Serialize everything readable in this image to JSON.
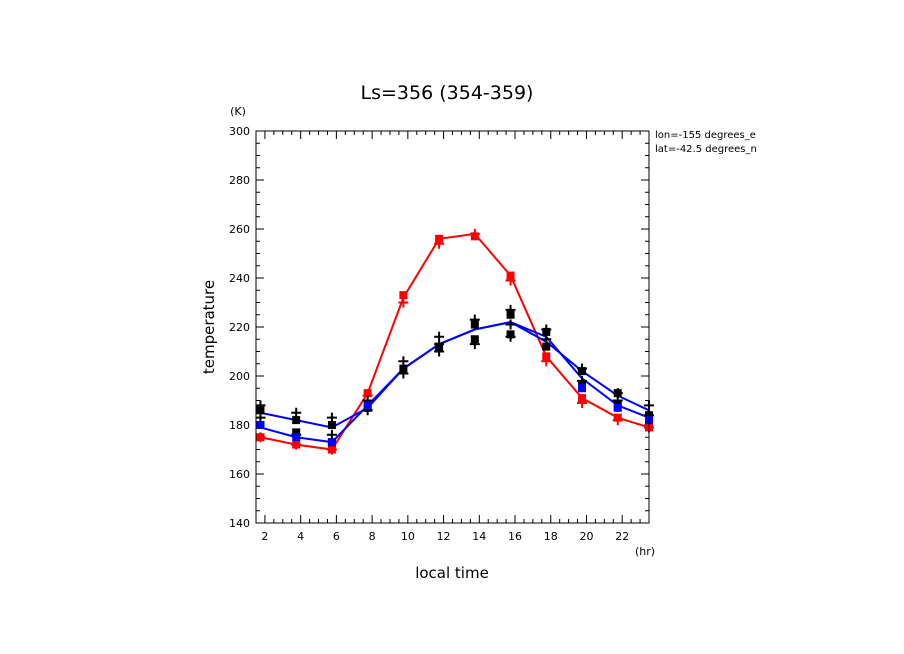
{
  "chart_data": {
    "type": "line",
    "title": "Ls=356 (354-359)",
    "xlabel": "local time",
    "ylabel": "temperature",
    "x_unit": "(hr)",
    "y_unit": "(K)",
    "xlim": [
      1.5,
      23.5
    ],
    "ylim": [
      140,
      300
    ],
    "x_ticks": [
      2,
      4,
      6,
      8,
      10,
      12,
      14,
      16,
      18,
      20,
      22
    ],
    "y_ticks": [
      140,
      160,
      180,
      200,
      220,
      240,
      260,
      280,
      300
    ],
    "annotations": [
      "lon=-155 degrees_e",
      "lat=-42.5 degrees_n"
    ],
    "x": [
      1.75,
      3.75,
      5.75,
      7.75,
      9.75,
      11.75,
      13.75,
      15.75,
      17.75,
      19.75,
      21.75,
      23.5
    ],
    "series": [
      {
        "color": "#ff0000",
        "values": [
          175,
          172,
          170,
          193,
          232,
          256,
          258,
          241,
          208,
          191,
          183,
          179
        ]
      },
      {
        "color": "#0000ff",
        "values": [
          179,
          175,
          173,
          188,
          203,
          213,
          219,
          222,
          216,
          199,
          188,
          183
        ]
      },
      {
        "color": "#0000ff",
        "values": [
          185,
          182,
          179,
          187,
          203,
          213,
          219,
          222,
          214,
          202,
          192,
          186
        ]
      }
    ],
    "obs_points": [
      {
        "color": "#ff0000",
        "marker": "square",
        "points": [
          [
            1.75,
            175
          ],
          [
            3.75,
            172
          ],
          [
            5.75,
            170
          ],
          [
            7.75,
            193
          ],
          [
            9.75,
            233
          ],
          [
            11.75,
            256
          ],
          [
            13.75,
            257
          ],
          [
            15.75,
            241
          ],
          [
            17.75,
            208
          ],
          [
            19.75,
            191
          ],
          [
            21.75,
            183
          ],
          [
            23.5,
            179
          ]
        ]
      },
      {
        "color": "#ff0000",
        "marker": "plus",
        "points": [
          [
            1.75,
            175
          ],
          [
            3.75,
            172
          ],
          [
            5.75,
            170
          ],
          [
            7.75,
            192
          ],
          [
            9.75,
            230
          ],
          [
            11.75,
            254
          ],
          [
            13.75,
            258
          ],
          [
            15.75,
            239
          ],
          [
            17.75,
            206
          ],
          [
            19.75,
            189
          ],
          [
            21.75,
            182
          ],
          [
            23.5,
            179
          ]
        ]
      },
      {
        "color": "#000000",
        "marker": "square",
        "points": [
          [
            1.75,
            186
          ],
          [
            3.75,
            177
          ],
          [
            5.75,
            173
          ],
          [
            7.75,
            187
          ],
          [
            9.75,
            203
          ],
          [
            11.75,
            212
          ],
          [
            13.75,
            221
          ],
          [
            15.75,
            225
          ],
          [
            17.75,
            218
          ],
          [
            19.75,
            202
          ],
          [
            21.75,
            193
          ],
          [
            23.5,
            184
          ],
          [
            1.75,
            180
          ],
          [
            3.75,
            182
          ],
          [
            5.75,
            180
          ],
          [
            13.75,
            215
          ],
          [
            15.75,
            217
          ],
          [
            17.75,
            212
          ],
          [
            19.75,
            196
          ],
          [
            21.75,
            188
          ]
        ]
      },
      {
        "color": "#000000",
        "marker": "plus",
        "points": [
          [
            1.75,
            188
          ],
          [
            3.75,
            185
          ],
          [
            5.75,
            183
          ],
          [
            7.75,
            186
          ],
          [
            9.75,
            201
          ],
          [
            9.75,
            206
          ],
          [
            11.75,
            210
          ],
          [
            11.75,
            216
          ],
          [
            13.75,
            213
          ],
          [
            13.75,
            223
          ],
          [
            15.75,
            216
          ],
          [
            15.75,
            227
          ],
          [
            17.75,
            219
          ],
          [
            19.75,
            203
          ],
          [
            21.75,
            193
          ],
          [
            23.5,
            188
          ],
          [
            1.75,
            183
          ],
          [
            3.75,
            176
          ],
          [
            5.75,
            176
          ],
          [
            7.75,
            190
          ],
          [
            11.75,
            213
          ],
          [
            15.75,
            221
          ],
          [
            17.75,
            215
          ],
          [
            19.75,
            198
          ],
          [
            21.75,
            190
          ],
          [
            23.5,
            184
          ]
        ]
      },
      {
        "color": "#0000ff",
        "marker": "square",
        "points": [
          [
            1.75,
            180
          ],
          [
            3.75,
            175
          ],
          [
            5.75,
            173
          ],
          [
            7.75,
            188
          ],
          [
            19.75,
            195
          ],
          [
            21.75,
            187
          ],
          [
            23.5,
            182
          ]
        ]
      }
    ]
  }
}
